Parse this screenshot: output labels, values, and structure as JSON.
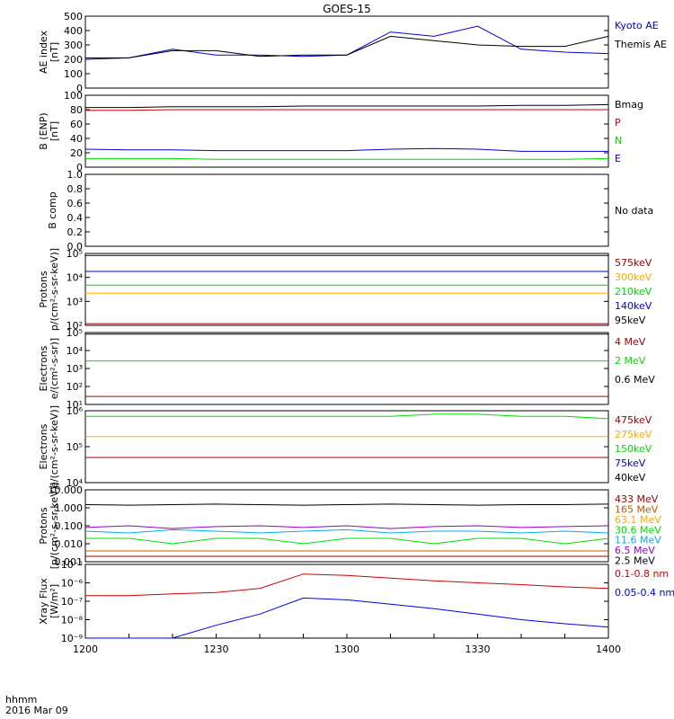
{
  "title": "GOES-15",
  "footer": {
    "time_label": "hhmm",
    "date_label": "2016 Mar 09"
  },
  "x_ticks": [
    "1200",
    "1230",
    "1300",
    "1330",
    "1400"
  ],
  "colors": {
    "black": "#000000",
    "red": "#cc0000",
    "green": "#00dd00",
    "blue": "#0000dd",
    "orange": "#ffaa00",
    "lightblue": "#00aaff",
    "purple": "#9900cc",
    "darkred": "#990000",
    "brown": "#cc5500"
  },
  "panels": [
    {
      "id": "ae",
      "ylabel": [
        "AE index",
        "[nT]"
      ],
      "ticks": [
        "500",
        "400",
        "300",
        "200",
        "100",
        "0"
      ],
      "legend": [
        {
          "text": "Kyoto AE",
          "color": "#0000dd"
        },
        {
          "text": "Themis AE",
          "color": "#000000"
        }
      ]
    },
    {
      "id": "bfield",
      "ylabel": [
        "B (ENP)",
        "[nT]"
      ],
      "ticks": [
        "100",
        "80",
        "60",
        "40",
        "20",
        "0"
      ],
      "legend": [
        {
          "text": "Bmag",
          "color": "#000000"
        },
        {
          "text": "P",
          "color": "#cc0000"
        },
        {
          "text": "N",
          "color": "#00dd00"
        },
        {
          "text": "E",
          "color": "#0000dd"
        }
      ]
    },
    {
      "id": "bcomp",
      "ylabel": [
        "B comp"
      ],
      "ticks": [
        "1.0",
        "0.8",
        "0.6",
        "0.4",
        "0.2",
        "0.0"
      ],
      "legend": [
        {
          "text": "No data",
          "color": "#000000"
        }
      ]
    },
    {
      "id": "protons1",
      "ylabel": [
        "Protons",
        "p/(cm²-s-sr-keV)]"
      ],
      "ticks": [
        "10⁵",
        "10⁴",
        "10³",
        "10²"
      ],
      "legend": [
        {
          "text": "575keV",
          "color": "#990000"
        },
        {
          "text": "300keV",
          "color": "#ffaa00"
        },
        {
          "text": "210keV",
          "color": "#00dd00"
        },
        {
          "text": "140keV",
          "color": "#0000dd"
        },
        {
          "text": "95keV",
          "color": "#000000"
        }
      ]
    },
    {
      "id": "electrons1",
      "ylabel": [
        "Electrons",
        "e/(cm²-s-sr)]"
      ],
      "ticks": [
        "10⁵",
        "10⁴",
        "10³",
        "10²",
        "10¹"
      ],
      "legend": [
        {
          "text": "4 MeV",
          "color": "#990000"
        },
        {
          "text": "2 MeV",
          "color": "#00dd00"
        },
        {
          "text": "0.6 MeV",
          "color": "#000000"
        }
      ]
    },
    {
      "id": "electrons2",
      "ylabel": [
        "Electrons",
        "e/(cm²-s-sr-keV)]"
      ],
      "ticks": [
        "10⁶",
        "10⁵",
        "10⁴"
      ],
      "legend": [
        {
          "text": "475keV",
          "color": "#990000"
        },
        {
          "text": "275keV",
          "color": "#ffaa00"
        },
        {
          "text": "150keV",
          "color": "#00dd00"
        },
        {
          "text": "75keV",
          "color": "#0000dd"
        },
        {
          "text": "40keV",
          "color": "#000000"
        }
      ]
    },
    {
      "id": "protons2",
      "ylabel": [
        "Protons",
        "[p/(cm²-s-sr-keV)]"
      ],
      "ticks": [
        "10.000",
        "1.000",
        "0.100",
        "0.010",
        "0.001"
      ],
      "legend": [
        {
          "text": "433 MeV",
          "color": "#990000"
        },
        {
          "text": "165 MeV",
          "color": "#cc5500"
        },
        {
          "text": "63.1 MeV",
          "color": "#ffaa00"
        },
        {
          "text": "30.6 MeV",
          "color": "#00dd00"
        },
        {
          "text": "11.6 MeV",
          "color": "#00aaff"
        },
        {
          "text": "6.5 MeV",
          "color": "#9900cc"
        },
        {
          "text": "2.5 MeV",
          "color": "#000000"
        }
      ]
    },
    {
      "id": "xray",
      "ylabel": [
        "Xray Flux",
        "[W/m²]"
      ],
      "ticks": [
        "10⁻⁵",
        "10⁻⁶",
        "10⁻⁷",
        "10⁻⁸",
        "10⁻⁹"
      ],
      "legend": [
        {
          "text": "0.1-0.8 nm",
          "color": "#cc0000"
        },
        {
          "text": "0.05-0.4 nm",
          "color": "#0000dd"
        }
      ]
    }
  ],
  "chart_data": {
    "type": "line",
    "title": "GOES-15",
    "x": [
      1200,
      1210,
      1220,
      1230,
      1240,
      1250,
      1300,
      1310,
      1320,
      1330,
      1340,
      1350,
      1400
    ],
    "xlim": [
      "1200",
      "1400"
    ],
    "xlabel": "hhmm",
    "panels": [
      {
        "id": "ae",
        "ylim": [
          0,
          500
        ],
        "series": [
          {
            "name": "Kyoto AE",
            "color": "#0000dd",
            "values": [
              200,
              210,
              270,
              230,
              230,
              220,
              230,
              390,
              360,
              430,
              270,
              250,
              240
            ]
          },
          {
            "name": "Themis AE",
            "color": "#000000",
            "values": [
              210,
              210,
              260,
              260,
              220,
              230,
              230,
              360,
              330,
              300,
              290,
              290,
              360
            ]
          }
        ]
      },
      {
        "id": "bfield",
        "ylim": [
          0,
          100
        ],
        "series": [
          {
            "name": "Bmag",
            "color": "#000000",
            "values": [
              83,
              83,
              84,
              84,
              84,
              85,
              85,
              85,
              85,
              85,
              86,
              86,
              87
            ]
          },
          {
            "name": "P",
            "color": "#cc0000",
            "values": [
              79,
              79,
              80,
              80,
              80,
              80,
              80,
              80,
              80,
              80,
              80,
              80,
              80
            ]
          },
          {
            "name": "N",
            "color": "#00dd00",
            "values": [
              12,
              12,
              12,
              11,
              11,
              11,
              11,
              11,
              11,
              11,
              11,
              11,
              12
            ]
          },
          {
            "name": "E",
            "color": "#0000dd",
            "values": [
              25,
              24,
              24,
              23,
              23,
              23,
              23,
              25,
              26,
              25,
              22,
              22,
              22
            ]
          }
        ]
      },
      {
        "id": "bcomp",
        "ylim": [
          0,
          1
        ],
        "series": []
      },
      {
        "id": "protons1",
        "log": true,
        "ylim": [
          50,
          100000
        ],
        "series": [
          {
            "name": "575keV",
            "color": "#990000",
            "values": [
              60,
              60,
              60,
              60,
              60,
              60,
              60,
              60,
              60,
              60,
              60,
              60,
              60
            ]
          },
          {
            "name": "300keV",
            "color": "#ffaa00",
            "values": [
              1500,
              1500,
              1500,
              1500,
              1500,
              1500,
              1500,
              1500,
              1500,
              1500,
              1500,
              1500,
              1500
            ]
          },
          {
            "name": "210keV",
            "color": "#00dd00",
            "values": [
              3500,
              3500,
              3500,
              3500,
              3500,
              3500,
              3500,
              3500,
              3500,
              3500,
              3500,
              3500,
              3500
            ]
          },
          {
            "name": "140keV",
            "color": "#0000dd",
            "values": [
              15000,
              15000,
              15000,
              15000,
              15000,
              15000,
              15000,
              15000,
              15000,
              15000,
              15000,
              15000,
              15000
            ]
          },
          {
            "name": "95keV",
            "color": "#000000",
            "values": [
              80000,
              80000,
              80000,
              80000,
              80000,
              80000,
              80000,
              80000,
              80000,
              80000,
              80000,
              80000,
              80000
            ]
          }
        ]
      },
      {
        "id": "electrons1",
        "log": true,
        "ylim": [
          5,
          100000
        ],
        "series": [
          {
            "name": "4 MeV",
            "color": "#990000",
            "values": [
              15,
              15,
              15,
              15,
              15,
              15,
              15,
              15,
              15,
              15,
              15,
              15,
              15
            ]
          },
          {
            "name": "2 MeV",
            "color": "#00dd00",
            "values": [
              2000,
              2000,
              2000,
              2000,
              2000,
              2000,
              2000,
              2000,
              2000,
              2000,
              2000,
              2000,
              2000
            ]
          },
          {
            "name": "0.6 MeV",
            "color": "#000000",
            "values": [
              80000,
              80000,
              80000,
              80000,
              80000,
              80000,
              80000,
              80000,
              80000,
              80000,
              80000,
              80000,
              80000
            ]
          }
        ]
      },
      {
        "id": "electrons2",
        "log": true,
        "ylim": [
          10000,
          1000000
        ],
        "series": [
          {
            "name": "475keV",
            "color": "#990000",
            "values": [
              50000,
              50000,
              50000,
              50000,
              50000,
              50000,
              50000,
              50000,
              50000,
              50000,
              50000,
              50000,
              50000
            ]
          },
          {
            "name": "275keV",
            "color": "#ffaa00",
            "values": [
              190000,
              190000,
              190000,
              190000,
              190000,
              190000,
              190000,
              190000,
              190000,
              190000,
              190000,
              190000,
              190000
            ]
          },
          {
            "name": "150keV",
            "color": "#00dd00",
            "values": [
              700000,
              700000,
              700000,
              700000,
              700000,
              700000,
              700000,
              700000,
              800000,
              800000,
              700000,
              700000,
              600000
            ]
          }
        ]
      },
      {
        "id": "protons2",
        "log": true,
        "ylim": [
          0.001,
          10
        ],
        "series": [
          {
            "name": "433 MeV",
            "color": "#990000",
            "values": [
              0.002,
              0.002,
              0.002,
              0.002,
              0.002,
              0.002,
              0.002,
              0.002,
              0.002,
              0.002,
              0.002,
              0.002,
              0.002
            ]
          },
          {
            "name": "165 MeV",
            "color": "#cc5500",
            "values": [
              0.004,
              0.004,
              0.004,
              0.004,
              0.004,
              0.004,
              0.004,
              0.004,
              0.004,
              0.004,
              0.004,
              0.004,
              0.004
            ]
          },
          {
            "name": "30.6 MeV",
            "color": "#00dd00",
            "values": [
              0.02,
              0.02,
              0.01,
              0.02,
              0.02,
              0.01,
              0.02,
              0.02,
              0.01,
              0.02,
              0.02,
              0.01,
              0.02
            ]
          },
          {
            "name": "11.6 MeV",
            "color": "#00aaff",
            "values": [
              0.05,
              0.04,
              0.06,
              0.05,
              0.04,
              0.05,
              0.06,
              0.04,
              0.05,
              0.05,
              0.04,
              0.05,
              0.04
            ]
          },
          {
            "name": "6.5 MeV",
            "color": "#9900cc",
            "values": [
              0.08,
              0.1,
              0.07,
              0.09,
              0.1,
              0.08,
              0.1,
              0.07,
              0.09,
              0.1,
              0.08,
              0.09,
              0.1
            ]
          },
          {
            "name": "2.5 MeV",
            "color": "#000000",
            "values": [
              1.5,
              1.4,
              1.5,
              1.6,
              1.5,
              1.4,
              1.5,
              1.6,
              1.5,
              1.4,
              1.5,
              1.5,
              1.6
            ]
          }
        ]
      },
      {
        "id": "xray",
        "log": true,
        "ylim": [
          1e-09,
          1e-05
        ],
        "series": [
          {
            "name": "0.1-0.8 nm",
            "color": "#cc0000",
            "values": [
              2e-07,
              2e-07,
              2.5e-07,
              3e-07,
              5e-07,
              3e-06,
              2.5e-06,
              1.8e-06,
              1.3e-06,
              1e-06,
              8e-07,
              6e-07,
              5e-07
            ]
          },
          {
            "name": "0.05-0.4 nm",
            "color": "#0000dd",
            "values": [
              1e-09,
              1e-09,
              1e-09,
              5e-09,
              2e-08,
              1.5e-07,
              1.2e-07,
              7e-08,
              4e-08,
              2e-08,
              1e-08,
              6e-09,
              4e-09
            ]
          }
        ]
      }
    ]
  }
}
